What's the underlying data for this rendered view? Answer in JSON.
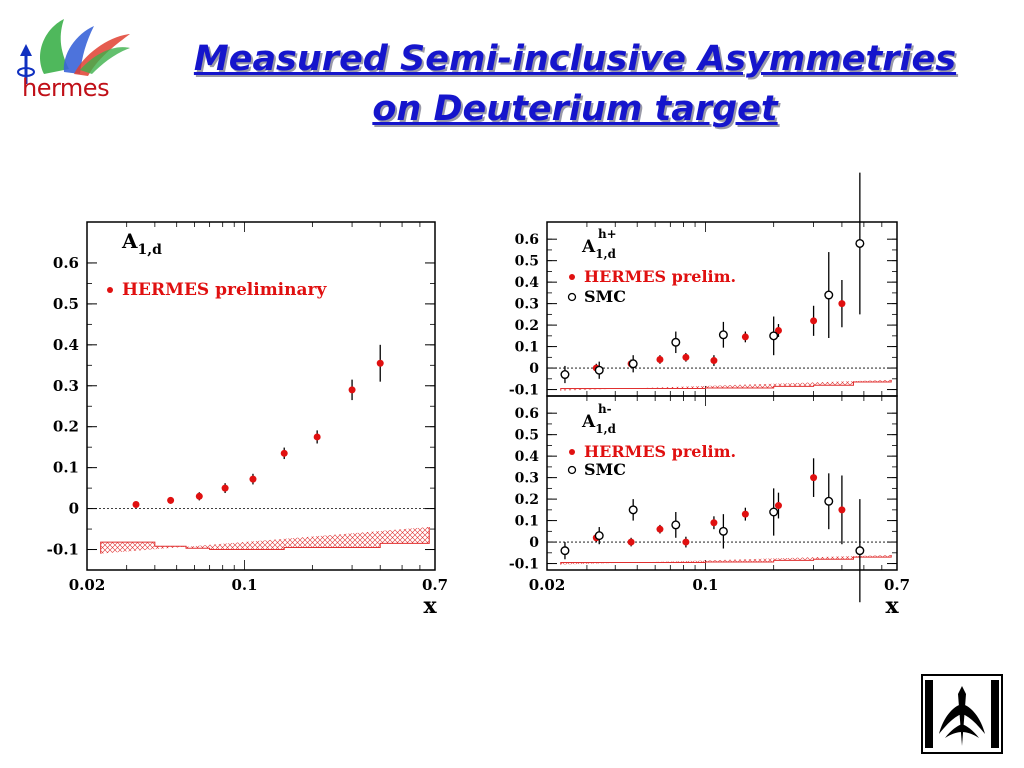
{
  "title_line1": "Measured Semi-inclusive Asymmetries",
  "title_line2": "on Deuterium target",
  "logo_text": "hermes",
  "colors": {
    "title": "#1515cc",
    "hermes": "#e01010",
    "smc": "#000000",
    "band": "#e03030"
  },
  "chart_data": [
    {
      "type": "scatter",
      "panel": "left",
      "label_main": "A",
      "label_sub": "1,d",
      "label_sup": "",
      "xlabel": "x",
      "xscale": "log",
      "xlim": [
        0.02,
        0.7
      ],
      "ylim": [
        -0.15,
        0.7
      ],
      "x_ticks": [
        0.02,
        0.1,
        0.7
      ],
      "x_tick_labels": [
        "0.02",
        "0.1",
        "0.7"
      ],
      "y_ticks": [
        -0.1,
        0,
        0.1,
        0.2,
        0.3,
        0.4,
        0.5,
        0.6
      ],
      "y_tick_labels": [
        "-0.1",
        "0",
        "0.1",
        "0.2",
        "0.3",
        "0.4",
        "0.5",
        "0.6"
      ],
      "legend": [
        "HERMES preliminary"
      ],
      "series": [
        {
          "name": "HERMES preliminary",
          "marker": "filled",
          "x": [
            0.033,
            0.047,
            0.063,
            0.082,
            0.109,
            0.15,
            0.21,
            0.3,
            0.4
          ],
          "y": [
            0.01,
            0.02,
            0.03,
            0.05,
            0.072,
            0.135,
            0.175,
            0.29,
            0.355
          ],
          "err": [
            0.006,
            0.008,
            0.01,
            0.012,
            0.013,
            0.014,
            0.016,
            0.025,
            0.045
          ]
        }
      ],
      "syst_band": {
        "edges": [
          0.023,
          0.04,
          0.055,
          0.07,
          0.09,
          0.15,
          0.3,
          0.4,
          0.66
        ],
        "heights": [
          0.028,
          0.018,
          0.013,
          0.01,
          0.01,
          0.015,
          0.015,
          0.025,
          0.065
        ],
        "base": -0.11
      }
    },
    {
      "type": "scatter",
      "panel": "right-top",
      "label_main": "A",
      "label_sub": "1,d",
      "label_sup": "h+",
      "xlabel": "",
      "xscale": "log",
      "xlim": [
        0.02,
        0.7
      ],
      "ylim": [
        -0.13,
        0.68
      ],
      "x_ticks": [],
      "x_tick_labels": [],
      "y_ticks": [
        -0.1,
        0,
        0.1,
        0.2,
        0.3,
        0.4,
        0.5,
        0.6
      ],
      "y_tick_labels": [
        "-0.1",
        "0",
        "0.1",
        "0.2",
        "0.3",
        "0.4",
        "0.5",
        "0.6"
      ],
      "legend": [
        "HERMES prelim.",
        "SMC"
      ],
      "series": [
        {
          "name": "HERMES prelim.",
          "marker": "filled",
          "x": [
            0.033,
            0.047,
            0.063,
            0.082,
            0.109,
            0.15,
            0.21,
            0.3,
            0.4
          ],
          "y": [
            0.0,
            0.02,
            0.04,
            0.05,
            0.035,
            0.145,
            0.175,
            0.22,
            0.3
          ],
          "err": [
            0.02,
            0.02,
            0.02,
            0.02,
            0.025,
            0.025,
            0.03,
            0.07,
            0.11
          ]
        },
        {
          "name": "SMC",
          "marker": "open",
          "x": [
            0.024,
            0.034,
            0.048,
            0.074,
            0.12,
            0.2,
            0.35,
            0.48
          ],
          "y": [
            -0.03,
            -0.01,
            0.02,
            0.12,
            0.155,
            0.15,
            0.34,
            0.58
          ],
          "err": [
            0.04,
            0.04,
            0.04,
            0.05,
            0.06,
            0.09,
            0.2,
            0.33
          ]
        }
      ],
      "syst_band": {
        "edges": [
          0.023,
          0.06,
          0.1,
          0.2,
          0.3,
          0.45,
          0.66
        ],
        "heights": [
          0.01,
          0.01,
          0.012,
          0.02,
          0.025,
          0.04,
          0.05
        ],
        "base": -0.105
      }
    },
    {
      "type": "scatter",
      "panel": "right-bottom",
      "label_main": "A",
      "label_sub": "1,d",
      "label_sup": "h-",
      "xlabel": "x",
      "xscale": "log",
      "xlim": [
        0.02,
        0.7
      ],
      "ylim": [
        -0.13,
        0.68
      ],
      "x_ticks": [
        0.02,
        0.1,
        0.7
      ],
      "x_tick_labels": [
        "0.02",
        "0.1",
        "0.7"
      ],
      "y_ticks": [
        -0.1,
        0,
        0.1,
        0.2,
        0.3,
        0.4,
        0.5,
        0.6
      ],
      "y_tick_labels": [
        "-0.1",
        "0",
        "0.1",
        "0.2",
        "0.3",
        "0.4",
        "0.5",
        "0.6"
      ],
      "legend": [
        "HERMES prelim.",
        "SMC"
      ],
      "series": [
        {
          "name": "HERMES prelim.",
          "marker": "filled",
          "x": [
            0.033,
            0.047,
            0.063,
            0.082,
            0.109,
            0.15,
            0.21,
            0.3,
            0.4
          ],
          "y": [
            0.02,
            0.0,
            0.06,
            0.0,
            0.09,
            0.13,
            0.17,
            0.3,
            0.15
          ],
          "err": [
            0.02,
            0.02,
            0.02,
            0.025,
            0.03,
            0.03,
            0.06,
            0.09,
            0.16
          ]
        },
        {
          "name": "SMC",
          "marker": "open",
          "x": [
            0.024,
            0.034,
            0.048,
            0.074,
            0.12,
            0.2,
            0.35
          ],
          "y": [
            -0.04,
            0.03,
            0.15,
            0.08,
            0.05,
            0.14,
            0.19
          ],
          "err": [
            0.04,
            0.04,
            0.05,
            0.06,
            0.08,
            0.11,
            0.13
          ]
        },
        {
          "name": "SMC",
          "marker": "open",
          "x": [
            0.48
          ],
          "y": [
            -0.04
          ],
          "err": [
            0.24
          ]
        }
      ],
      "syst_band": {
        "edges": [
          0.023,
          0.06,
          0.1,
          0.2,
          0.3,
          0.45,
          0.66
        ],
        "heights": [
          0.01,
          0.01,
          0.012,
          0.02,
          0.025,
          0.035,
          0.045
        ],
        "base": -0.105
      }
    }
  ]
}
